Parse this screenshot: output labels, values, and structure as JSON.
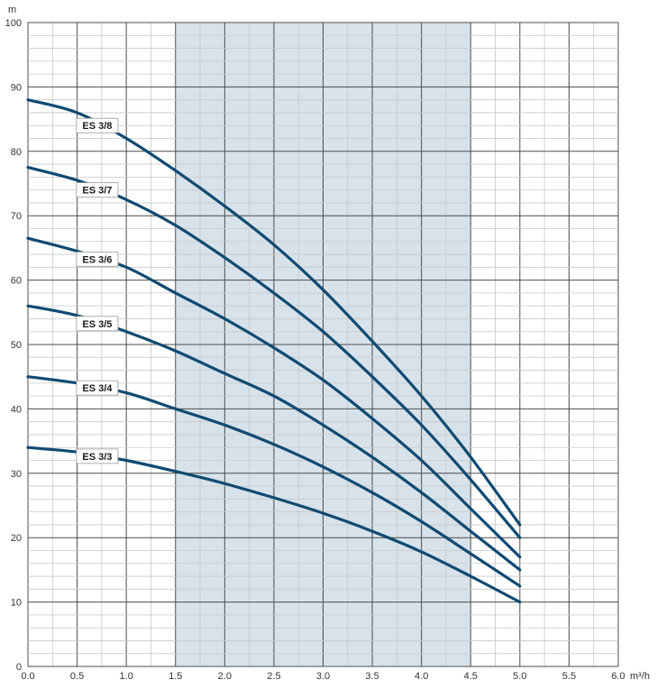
{
  "chart_data": {
    "type": "line",
    "x_unit": "m³/h",
    "y_unit": "m",
    "xlim": [
      0,
      6
    ],
    "ylim": [
      0,
      100
    ],
    "x_ticks": [
      "0.0",
      "0.5",
      "1.0",
      "1.5",
      "2.0",
      "2.5",
      "3.0",
      "3.5",
      "4.0",
      "4.5",
      "5.0",
      "5.5",
      "6.0"
    ],
    "y_ticks": [
      "0",
      "10",
      "20",
      "30",
      "40",
      "50",
      "60",
      "70",
      "80",
      "90",
      "100"
    ],
    "shaded_range": [
      1.5,
      4.5
    ],
    "grid": true,
    "colors": {
      "curve": "#0f4a72",
      "shade": "#d7e2ea",
      "grid_major": "#4d4d4d",
      "grid_minor": "#c8c8c8"
    },
    "series": [
      {
        "name": "ES 3/8",
        "label_x": 0.75,
        "x": [
          0,
          0.5,
          1,
          1.5,
          2,
          2.5,
          3,
          3.5,
          4,
          4.5,
          5
        ],
        "values": [
          88,
          86,
          82,
          77,
          71.5,
          65.5,
          58.5,
          50.5,
          42,
          32.5,
          22
        ]
      },
      {
        "name": "ES 3/7",
        "label_x": 0.75,
        "x": [
          0,
          0.5,
          1,
          1.5,
          2,
          2.5,
          3,
          3.5,
          4,
          4.5,
          5
        ],
        "values": [
          77.5,
          75.5,
          72.5,
          68.5,
          63.5,
          58,
          52,
          45,
          37.5,
          29,
          20
        ]
      },
      {
        "name": "ES 3/6",
        "label_x": 0.75,
        "x": [
          0,
          0.5,
          1,
          1.5,
          2,
          2.5,
          3,
          3.5,
          4,
          4.5,
          5
        ],
        "values": [
          66.5,
          64.5,
          62,
          58,
          54,
          49.5,
          44.5,
          38.5,
          32,
          24.5,
          17
        ]
      },
      {
        "name": "ES 3/5",
        "label_x": 0.75,
        "x": [
          0,
          0.5,
          1,
          1.5,
          2,
          2.5,
          3,
          3.5,
          4,
          4.5,
          5
        ],
        "values": [
          56,
          54.5,
          52,
          49,
          45.5,
          42,
          37.5,
          32.5,
          27,
          21,
          15
        ]
      },
      {
        "name": "ES 3/4",
        "label_x": 0.75,
        "x": [
          0,
          0.5,
          1,
          1.5,
          2,
          2.5,
          3,
          3.5,
          4,
          4.5,
          5
        ],
        "values": [
          45,
          44,
          42.5,
          40,
          37.5,
          34.5,
          31,
          27,
          22.5,
          17.5,
          12.5
        ]
      },
      {
        "name": "ES 3/3",
        "label_x": 0.75,
        "x": [
          0,
          0.5,
          1,
          1.5,
          2,
          2.5,
          3,
          3.5,
          4,
          4.5,
          5
        ],
        "values": [
          34,
          33.3,
          32,
          30.3,
          28.4,
          26.2,
          23.8,
          21,
          17.8,
          14,
          10
        ]
      }
    ]
  }
}
